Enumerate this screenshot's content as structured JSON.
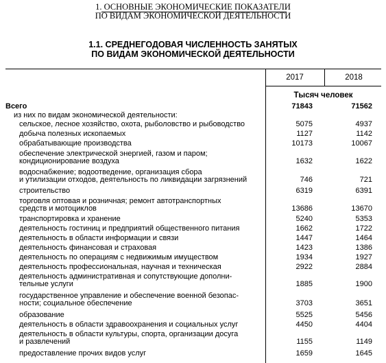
{
  "section_heading": {
    "line1": "1. ОСНОВНЫЕ ЭКОНОМИЧЕСКИЕ ПОКАЗАТЕЛИ",
    "line2": "ПО ВИДАМ ЭКОНОМИЧЕСКОЙ ДЕЯТЕЛЬНОСТИ"
  },
  "table_title": {
    "line1": "1.1. СРЕДНЕГОДОВАЯ ЧИСЛЕННОСТЬ ЗАНЯТЫХ",
    "line2": "ПО ВИДАМ ЭКОНОМИЧЕСКОЙ ДЕЯТЕЛЬНОСТИ"
  },
  "columns": {
    "year1": "2017",
    "year2": "2018"
  },
  "units": "Тысяч человек",
  "rows": [
    {
      "lines": [
        "Всего"
      ],
      "v1": "71843",
      "v2": "71562",
      "bold": true
    },
    {
      "lines": [
        "из них по видам экономической деятельности:"
      ],
      "v1": "",
      "v2": ""
    },
    {
      "lines": [
        "сельское, лесное хозяйство, охота, рыболовство и рыбоводство"
      ],
      "v1": "5075",
      "v2": "4937"
    },
    {
      "lines": [
        "добыча полезных ископаемых"
      ],
      "v1": "1127",
      "v2": "1142"
    },
    {
      "lines": [
        "обрабатывающие производства"
      ],
      "v1": "10173",
      "v2": "10067"
    },
    {
      "lines": [
        "обеспечение электрической энергией, газом и паром;",
        "кондиционирование воздуха"
      ],
      "v1": "1632",
      "v2": "1622"
    },
    {
      "lines": [
        "водоснабжение; водоотведение, организация сбора",
        "и утилизации отходов, деятельность по ликвидации загрязнений"
      ],
      "v1": "746",
      "v2": "721"
    },
    {
      "lines": [
        "строительство"
      ],
      "v1": "6319",
      "v2": "6391"
    },
    {
      "lines": [
        "торговля оптовая и розничная; ремонт автотранспортных",
        "средств и мотоциклов"
      ],
      "v1": "13686",
      "v2": "13670"
    },
    {
      "lines": [
        "транспортировка и хранение"
      ],
      "v1": "5240",
      "v2": "5353"
    },
    {
      "lines": [
        "деятельность гостиниц и предприятий общественного питания"
      ],
      "v1": "1662",
      "v2": "1722"
    },
    {
      "lines": [
        "деятельность в области информации и связи"
      ],
      "v1": "1447",
      "v2": "1464"
    },
    {
      "lines": [
        "деятельность финансовая и страховая"
      ],
      "v1": "1423",
      "v2": "1386"
    },
    {
      "lines": [
        "деятельность по операциям с недвижимым имуществом"
      ],
      "v1": "1934",
      "v2": "1927"
    },
    {
      "lines": [
        "деятельность профессиональная, научная и техническая"
      ],
      "v1": "2922",
      "v2": "2884"
    },
    {
      "lines": [
        "деятельность административная и сопутствующие дополни-",
        "тельные услуги"
      ],
      "v1": "1885",
      "v2": "1900"
    },
    {
      "lines": [
        "государственное управление и обеспечение военной безопас-",
        "ности; социальное обеспечение"
      ],
      "v1": "3703",
      "v2": "3651"
    },
    {
      "lines": [
        "образование"
      ],
      "v1": "5525",
      "v2": "5456"
    },
    {
      "lines": [
        "деятельность в области здравоохранения и социальных услуг"
      ],
      "v1": "4450",
      "v2": "4404"
    },
    {
      "lines": [
        "деятельность в области культуры, спорта, организации досуга",
        "и развлечений"
      ],
      "v1": "1155",
      "v2": "1149"
    },
    {
      "lines": [
        "предоставление прочих видов услуг"
      ],
      "v1": "1659",
      "v2": "1645"
    }
  ]
}
